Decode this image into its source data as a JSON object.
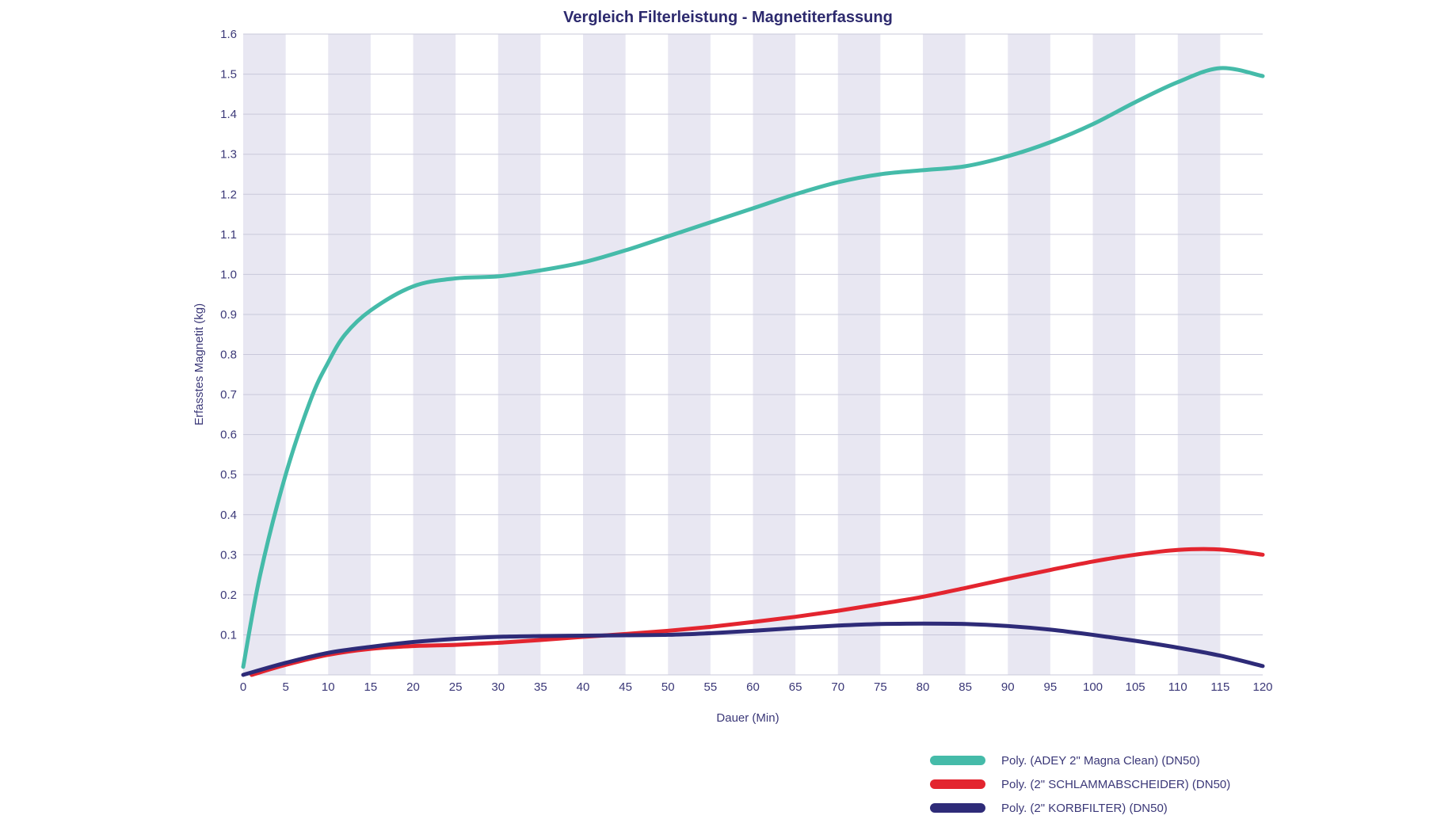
{
  "chart_data": {
    "type": "line",
    "title": "Vergleich Filterleistung - Magnetiterfassung",
    "xlabel": "Dauer (Min)",
    "ylabel": "Erfasstes Magnetit (kg)",
    "xlim": [
      0,
      120
    ],
    "ylim": [
      0,
      1.6
    ],
    "x_ticks": [
      "0",
      "5",
      "10",
      "15",
      "20",
      "25",
      "30",
      "35",
      "40",
      "45",
      "50",
      "55",
      "60",
      "65",
      "70",
      "75",
      "80",
      "85",
      "90",
      "95",
      "100",
      "105",
      "110",
      "115",
      "120"
    ],
    "y_ticks": [
      "0.1",
      "0.2",
      "0.3",
      "0.4",
      "0.5",
      "0.6",
      "0.7",
      "0.8",
      "0.9",
      "1.0",
      "1.1",
      "1.2",
      "1.3",
      "1.4",
      "1.5",
      "1.6"
    ],
    "grid": true,
    "background_bands": "alternating 5-minute vertical bands",
    "legend_position": "bottom-right",
    "series": [
      {
        "name": "Poly. (ADEY 2\" Magna Clean) (DN50)",
        "color": "#45bba9",
        "x": [
          0,
          2,
          5,
          8,
          10,
          12,
          15,
          20,
          25,
          30,
          35,
          40,
          45,
          50,
          55,
          60,
          65,
          70,
          75,
          80,
          85,
          90,
          95,
          100,
          105,
          110,
          115,
          120
        ],
        "y": [
          0.02,
          0.25,
          0.5,
          0.69,
          0.78,
          0.85,
          0.91,
          0.97,
          0.99,
          0.995,
          1.01,
          1.03,
          1.06,
          1.095,
          1.13,
          1.165,
          1.2,
          1.23,
          1.25,
          1.26,
          1.27,
          1.295,
          1.33,
          1.375,
          1.43,
          1.48,
          1.515,
          1.495
        ]
      },
      {
        "name": "Poly. (2\" SCHLAMMABSCHEIDER) (DN50)",
        "color": "#e3252f",
        "x": [
          1,
          5,
          10,
          15,
          20,
          25,
          30,
          35,
          40,
          45,
          50,
          55,
          60,
          65,
          70,
          75,
          80,
          85,
          90,
          95,
          100,
          105,
          110,
          115,
          120
        ],
        "y": [
          0.0,
          0.025,
          0.05,
          0.065,
          0.072,
          0.075,
          0.08,
          0.087,
          0.095,
          0.102,
          0.11,
          0.12,
          0.132,
          0.145,
          0.16,
          0.177,
          0.195,
          0.217,
          0.24,
          0.262,
          0.283,
          0.3,
          0.312,
          0.313,
          0.3
        ]
      },
      {
        "name": "Poly. (2\" KORBFILTER) (DN50)",
        "color": "#2e2b78",
        "x": [
          0,
          5,
          10,
          15,
          20,
          25,
          30,
          35,
          40,
          45,
          50,
          55,
          60,
          65,
          70,
          75,
          80,
          85,
          90,
          95,
          100,
          105,
          110,
          115,
          120
        ],
        "y": [
          0.0,
          0.03,
          0.055,
          0.07,
          0.082,
          0.09,
          0.095,
          0.097,
          0.098,
          0.099,
          0.1,
          0.104,
          0.11,
          0.117,
          0.123,
          0.127,
          0.128,
          0.127,
          0.122,
          0.113,
          0.1,
          0.085,
          0.068,
          0.048,
          0.022
        ]
      }
    ]
  }
}
